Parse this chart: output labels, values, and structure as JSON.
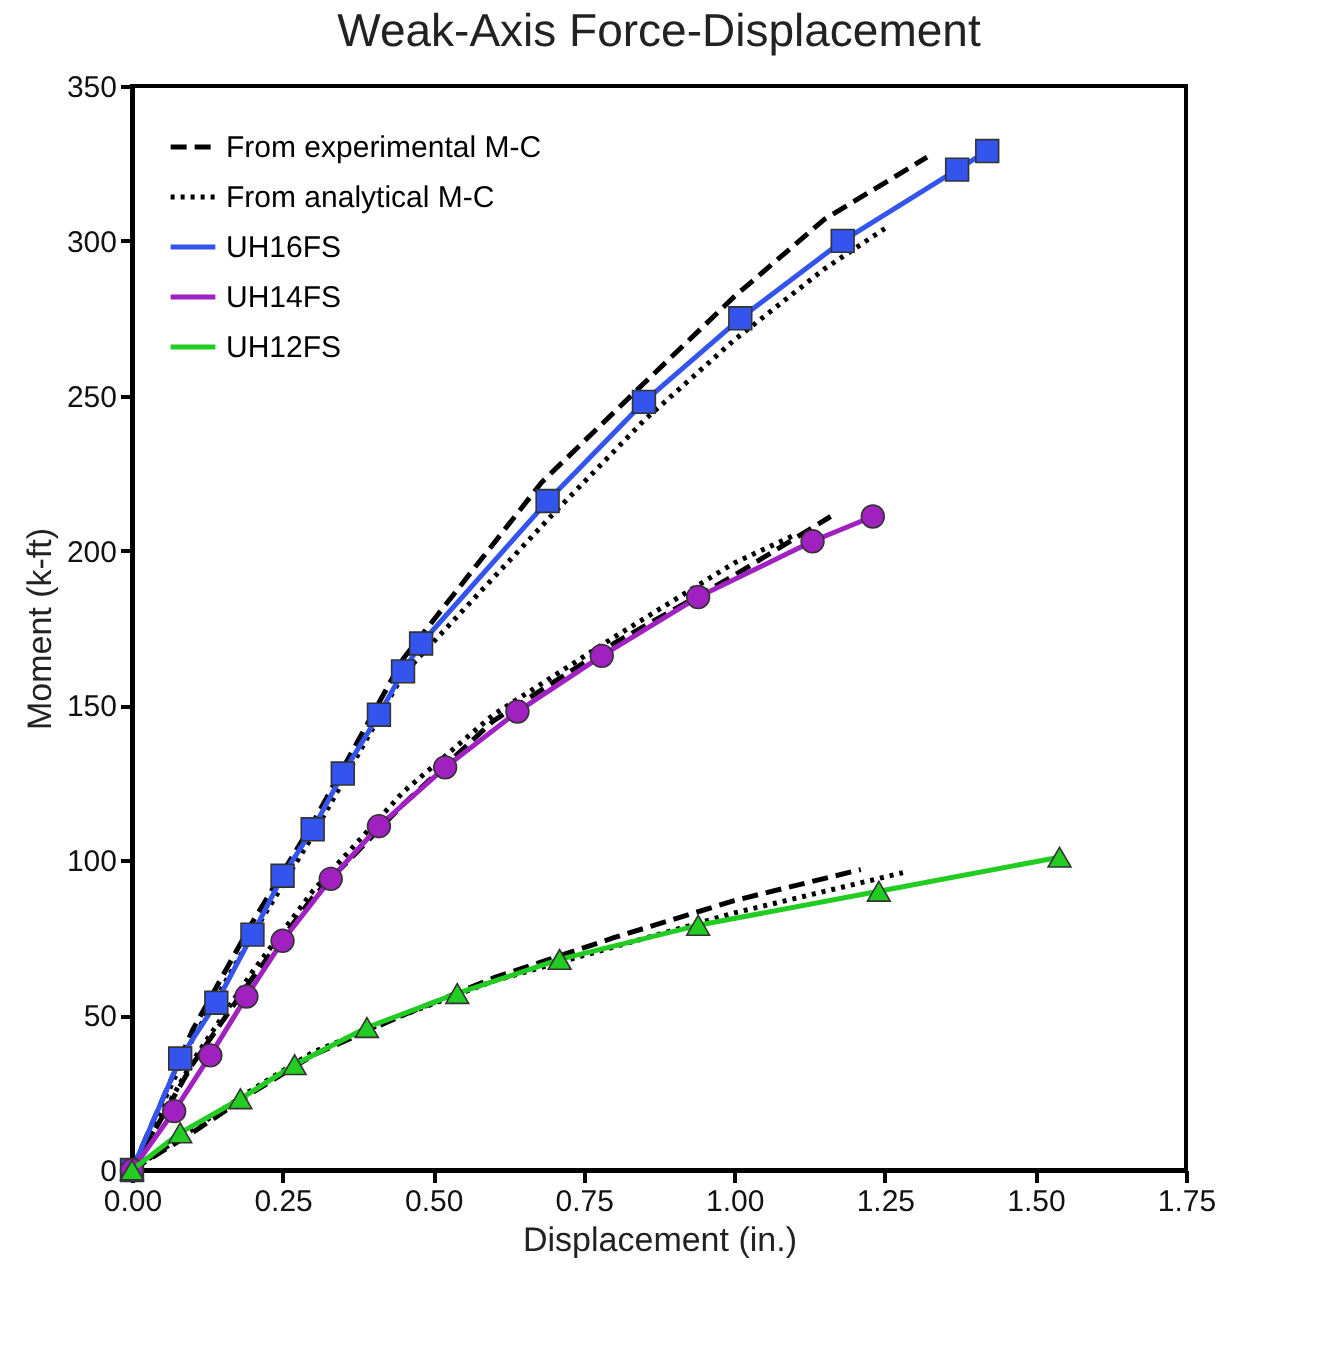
{
  "chart_data": {
    "type": "line",
    "title": "Weak-Axis Force-Displacement",
    "xlabel": "Displacement (in.)",
    "ylabel": "Moment (k-ft)",
    "xlim": [
      0,
      1.75
    ],
    "xticks": [
      {
        "value": 0,
        "label": "0.00"
      },
      0.25,
      {
        "value": 0.5,
        "label": "0.50"
      },
      0.75,
      {
        "value": 1,
        "label": "1.00"
      },
      1.25,
      {
        "value": 1.5,
        "label": "1.50"
      },
      1.75
    ],
    "ylim": [
      0,
      350
    ],
    "yticks": [
      0,
      50,
      100,
      150,
      200,
      250,
      300,
      350
    ],
    "grid": false,
    "legend": "top left",
    "series": [
      {
        "name": "From experimental M-C",
        "color": "#000000",
        "line_style": "dashed",
        "marker": "none",
        "x": [
          0,
          0.1,
          0.2,
          0.3,
          0.45,
          0.68,
          0.85,
          1.0,
          1.15,
          1.32
        ],
        "values": [
          0,
          45,
          80,
          112,
          165,
          222,
          254,
          282,
          307,
          327
        ]
      },
      {
        "name": "From analytical M-C",
        "color": "#000000",
        "line_style": "dotted",
        "marker": "none",
        "x": [
          0,
          0.1,
          0.2,
          0.3,
          0.45,
          0.7,
          0.85,
          1.0,
          1.15,
          1.25
        ],
        "values": [
          0,
          42,
          76,
          108,
          160,
          212,
          242,
          268,
          291,
          304
        ]
      },
      {
        "color": "#000000",
        "line_style": "dashed",
        "marker": "none",
        "x": [
          0,
          0.1,
          0.2,
          0.3,
          0.45,
          0.6,
          0.8,
          1.0,
          1.16
        ],
        "values": [
          0,
          34,
          62,
          88,
          118,
          145,
          170,
          192,
          211
        ]
      },
      {
        "color": "#000000",
        "line_style": "dotted",
        "marker": "none",
        "x": [
          0,
          0.1,
          0.2,
          0.3,
          0.45,
          0.6,
          0.8,
          1.0,
          1.1
        ],
        "values": [
          0,
          35,
          64,
          90,
          122,
          147,
          172,
          196,
          205
        ]
      },
      {
        "color": "#000000",
        "line_style": "dashed",
        "marker": "none",
        "x": [
          0,
          0.1,
          0.2,
          0.3,
          0.45,
          0.6,
          0.8,
          1.0,
          1.21
        ],
        "values": [
          0,
          12,
          25,
          37,
          50,
          62,
          75,
          87,
          97
        ]
      },
      {
        "color": "#000000",
        "line_style": "dotted",
        "marker": "none",
        "x": [
          0,
          0.1,
          0.2,
          0.3,
          0.45,
          0.6,
          0.8,
          1.0,
          1.28
        ],
        "values": [
          0,
          13,
          26,
          38,
          50,
          61,
          72,
          83,
          96
        ]
      },
      {
        "name": "UH16FS",
        "color": "#3355ee",
        "line_style": "solid",
        "marker": "square",
        "x": [
          0,
          0.08,
          0.14,
          0.2,
          0.25,
          0.3,
          0.35,
          0.41,
          0.45,
          0.48,
          0.69,
          0.85,
          1.01,
          1.18,
          1.37,
          1.42
        ],
        "values": [
          0,
          36,
          54,
          76,
          95,
          110,
          128,
          147,
          161,
          170,
          216,
          248,
          275,
          300,
          323,
          329
        ]
      },
      {
        "name": "UH14FS",
        "color": "#a020c0",
        "line_style": "solid",
        "marker": "circle",
        "x": [
          0,
          0.07,
          0.13,
          0.19,
          0.25,
          0.33,
          0.41,
          0.52,
          0.64,
          0.78,
          0.94,
          1.13,
          1.23
        ],
        "values": [
          0,
          19,
          37,
          56,
          74,
          94,
          111,
          130,
          148,
          166,
          185,
          203,
          211
        ]
      },
      {
        "name": "UH12FS",
        "color": "#22cc22",
        "line_style": "solid",
        "marker": "triangle",
        "x": [
          0,
          0.08,
          0.18,
          0.27,
          0.39,
          0.54,
          0.71,
          0.94,
          1.24,
          1.54
        ],
        "values": [
          0,
          12,
          23,
          34,
          46,
          57,
          68,
          79,
          90,
          101
        ]
      }
    ]
  }
}
